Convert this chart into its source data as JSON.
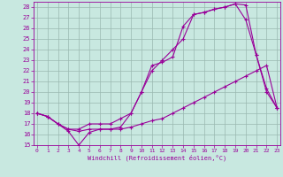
{
  "title": "",
  "xlabel": "Windchill (Refroidissement éolien,°C)",
  "background_color": "#c8e8e0",
  "line_color": "#990099",
  "grid_color": "#9ab8b0",
  "x": [
    0,
    1,
    2,
    3,
    4,
    5,
    6,
    7,
    8,
    9,
    10,
    11,
    12,
    13,
    14,
    15,
    16,
    17,
    18,
    19,
    20,
    21,
    22,
    23
  ],
  "line1": [
    18,
    17.7,
    17,
    16.3,
    15,
    16.2,
    16.5,
    16.5,
    16.7,
    18,
    20,
    22.5,
    22.8,
    23.3,
    26.2,
    27.3,
    27.5,
    27.8,
    28,
    28.3,
    28.2,
    23.5,
    20.3,
    18.5
  ],
  "line2": [
    18,
    17.7,
    17,
    16.5,
    16.3,
    16.5,
    16.5,
    16.5,
    16.5,
    16.7,
    17.0,
    17.3,
    17.5,
    18.0,
    18.5,
    19.0,
    19.5,
    20.0,
    20.5,
    21.0,
    21.5,
    22.0,
    22.5,
    18.5
  ],
  "line3": [
    18,
    17.7,
    17,
    16.5,
    16.5,
    17,
    17,
    17,
    17.5,
    18.0,
    20.0,
    22.0,
    23.0,
    24.0,
    25.0,
    27.3,
    27.5,
    27.8,
    28.0,
    28.3,
    26.8,
    23.5,
    20.0,
    18.5
  ],
  "ylim": [
    15,
    28.5
  ],
  "xlim": [
    -0.3,
    23.3
  ],
  "yticks": [
    15,
    16,
    17,
    18,
    19,
    20,
    21,
    22,
    23,
    24,
    25,
    26,
    27,
    28
  ],
  "xticks": [
    0,
    1,
    2,
    3,
    4,
    5,
    6,
    7,
    8,
    9,
    10,
    11,
    12,
    13,
    14,
    15,
    16,
    17,
    18,
    19,
    20,
    21,
    22,
    23
  ],
  "marker": "+",
  "markersize": 3,
  "linewidth": 0.8
}
